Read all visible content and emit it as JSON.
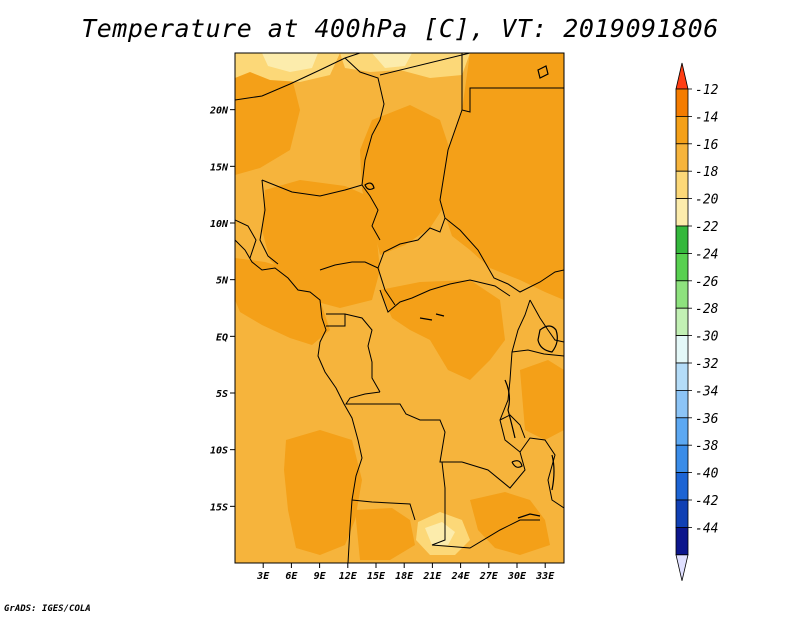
{
  "title": "Temperature at 400hPa [C], VT: 2019091806",
  "credit": "GrADS: IGES/COLA",
  "map": {
    "lon_range": [
      0,
      35
    ],
    "lat_range": [
      -20,
      25
    ],
    "lon_ticks": [
      "3E",
      "6E",
      "9E",
      "12E",
      "15E",
      "18E",
      "21E",
      "24E",
      "27E",
      "30E",
      "33E"
    ],
    "lat_ticks": [
      "20N",
      "15N",
      "10N",
      "5N",
      "EQ",
      "5S",
      "10S",
      "15S"
    ],
    "lon_tick_values": [
      3,
      6,
      9,
      12,
      15,
      18,
      21,
      24,
      27,
      30,
      33
    ],
    "lat_tick_values": [
      20,
      15,
      10,
      5,
      0,
      -5,
      -10,
      -15
    ],
    "dominant_fill": "-16",
    "colors": {
      "band_-16": "#f6b43c",
      "band_-14": "#f4a018",
      "band_-18": "#fcd878",
      "band_-20": "#fcecac"
    }
  },
  "colorbar": {
    "labels": [
      "-12",
      "-14",
      "-16",
      "-18",
      "-20",
      "-22",
      "-24",
      "-26",
      "-28",
      "-30",
      "-32",
      "-34",
      "-36",
      "-38",
      "-40",
      "-42",
      "-44"
    ],
    "colors": [
      "#ff3e14",
      "#f47c00",
      "#f4a018",
      "#f6b43c",
      "#fcd878",
      "#fcecac",
      "#34b83c",
      "#58d050",
      "#8ee27e",
      "#c2f0b4",
      "#e4f8f8",
      "#b4dcf8",
      "#8cc4f6",
      "#5ca8f2",
      "#3a8ce8",
      "#1c64d4",
      "#1040b4",
      "#0c168c",
      "#e0e0ff"
    ]
  }
}
